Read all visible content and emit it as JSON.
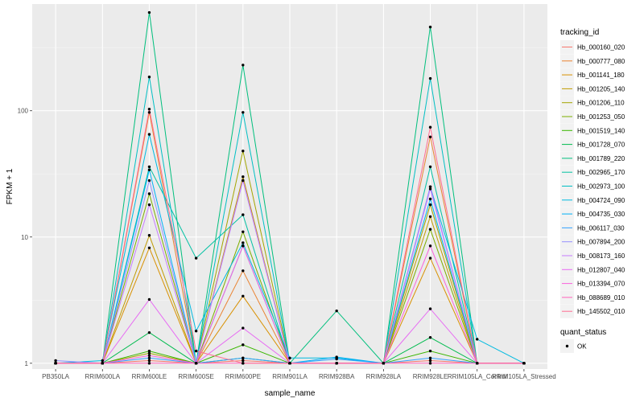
{
  "chart_data": {
    "type": "line",
    "xlabel": "sample_name",
    "ylabel": "FPKM + 1",
    "y_scale": "log10",
    "ylim": [
      0.9,
      700
    ],
    "y_ticks": [
      {
        "value": 1,
        "label": "1"
      },
      {
        "value": 10,
        "label": "10"
      },
      {
        "value": 100,
        "label": "100"
      }
    ],
    "grid": true,
    "categories": [
      "PB350LA",
      "RRIM600LA",
      "RRIM600LE",
      "RRIM600SE",
      "RRIM600PE",
      "RRIM901LA",
      "RRIM928BA",
      "RRIM928LA",
      "RRIM928LE",
      "RRIM105LA_Control",
      "RRIM105LA_Stressed"
    ],
    "legend": {
      "title": "tracking_id",
      "position": "right"
    },
    "shape_legend": {
      "title": "quant_status",
      "entries": [
        {
          "label": "OK",
          "color": "#000000"
        }
      ]
    },
    "series": [
      {
        "name": "Hb_000160_020",
        "color": "#F8766D",
        "values": [
          1,
          1,
          1.05,
          1,
          1.05,
          1,
          1,
          1,
          1.05,
          1,
          1
        ]
      },
      {
        "name": "Hb_000777_080",
        "color": "#EA8331",
        "values": [
          1,
          1,
          97,
          1,
          5.4,
          1,
          1,
          1,
          62,
          1,
          1
        ]
      },
      {
        "name": "Hb_001141_180",
        "color": "#D89000",
        "values": [
          1,
          1,
          8.2,
          1,
          3.4,
          1,
          1,
          1,
          6.8,
          1,
          1
        ]
      },
      {
        "name": "Hb_001205_140",
        "color": "#C09B00",
        "values": [
          1,
          1,
          10.3,
          1,
          30,
          1,
          1,
          1,
          14.5,
          1,
          1
        ]
      },
      {
        "name": "Hb_001206_110",
        "color": "#A3A500",
        "values": [
          1,
          1,
          1.2,
          1,
          48,
          1,
          1,
          1,
          18,
          1,
          1
        ]
      },
      {
        "name": "Hb_001253_050",
        "color": "#7CAE00",
        "values": [
          1,
          1,
          22,
          1,
          11,
          1,
          1,
          1,
          11.5,
          1,
          1
        ]
      },
      {
        "name": "Hb_001519_140",
        "color": "#39B600",
        "values": [
          1,
          1,
          1.25,
          1,
          1.4,
          1,
          1,
          1,
          1.25,
          1,
          1
        ]
      },
      {
        "name": "Hb_001728_070",
        "color": "#00BB4E",
        "values": [
          1,
          1,
          1.75,
          1,
          1.1,
          1,
          1,
          1,
          1.6,
          1,
          1
        ]
      },
      {
        "name": "Hb_001789_220",
        "color": "#00BF7D",
        "values": [
          1,
          1,
          600,
          1,
          230,
          1,
          2.6,
          1,
          460,
          1,
          1
        ]
      },
      {
        "name": "Hb_002965_170",
        "color": "#00C1A3",
        "values": [
          1,
          1,
          36,
          6.8,
          15,
          1,
          1,
          1,
          36,
          1,
          1
        ]
      },
      {
        "name": "Hb_002973_100",
        "color": "#00BFC4",
        "values": [
          1,
          1,
          185,
          1,
          97,
          1,
          1,
          1,
          180,
          1,
          1
        ]
      },
      {
        "name": "Hb_004724_090",
        "color": "#00BAE0",
        "values": [
          1,
          1.05,
          65,
          1.8,
          9,
          1.1,
          1.1,
          1,
          25,
          1.55,
          1
        ]
      },
      {
        "name": "Hb_004735_030",
        "color": "#00B0F6",
        "values": [
          1,
          1,
          34,
          1,
          8.5,
          1,
          1.12,
          1,
          20,
          1,
          1
        ]
      },
      {
        "name": "Hb_006117_030",
        "color": "#35A2FF",
        "values": [
          1,
          1,
          1.1,
          1,
          1.1,
          1,
          1.08,
          1,
          1.1,
          1,
          1
        ]
      },
      {
        "name": "Hb_007894_200",
        "color": "#9590FF",
        "values": [
          1.05,
          1,
          28,
          1,
          28,
          1,
          1,
          1,
          25,
          1,
          1
        ]
      },
      {
        "name": "Hb_008173_160",
        "color": "#C77CFF",
        "values": [
          1,
          1,
          18,
          1,
          28,
          1,
          1,
          1,
          24,
          1,
          1
        ]
      },
      {
        "name": "Hb_012807_040",
        "color": "#E76BF3",
        "values": [
          1,
          1,
          3.2,
          1,
          1.9,
          1,
          1,
          1,
          2.7,
          1,
          1
        ]
      },
      {
        "name": "Hb_013394_070",
        "color": "#FA62DB",
        "values": [
          1,
          1,
          1.15,
          1,
          8.5,
          1,
          1,
          1,
          8.5,
          1,
          1
        ]
      },
      {
        "name": "Hb_088689_010",
        "color": "#FF62BC",
        "values": [
          1,
          1,
          1,
          1,
          1,
          1,
          1,
          1,
          1,
          1,
          1
        ]
      },
      {
        "name": "Hb_145502_010",
        "color": "#FF6C91",
        "values": [
          1,
          1,
          103,
          1.25,
          1,
          1,
          1,
          1,
          74,
          1,
          1
        ]
      }
    ]
  }
}
